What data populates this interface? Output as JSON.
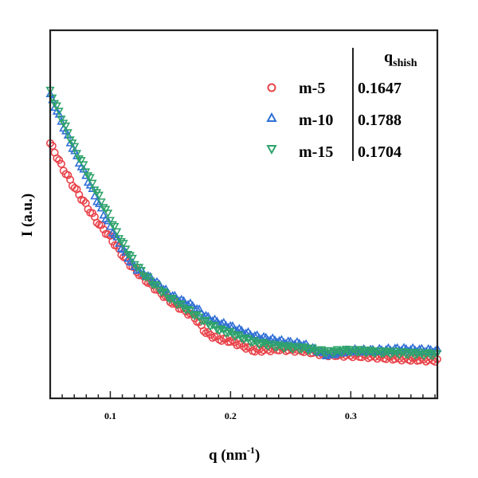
{
  "chart_data": {
    "type": "scatter",
    "title": "",
    "xlabel": "q (nm",
    "xlabel_sup": "-1",
    "xlabel_end": ")",
    "ylabel": "I (a.u.)",
    "xlim": [
      0.05,
      0.372
    ],
    "ylim": [
      0,
      100
    ],
    "xticks": [
      0.1,
      0.2,
      0.3
    ],
    "xtick_labels": [
      "0.1",
      "0.2",
      "0.3"
    ],
    "grid": false,
    "legend": {
      "placement": "top-right",
      "header": "q",
      "header_sub": "shish",
      "entries": [
        {
          "name": "m-5",
          "q_shish": "0.1647"
        },
        {
          "name": "m-10",
          "q_shish": "0.1788"
        },
        {
          "name": "m-15",
          "q_shish": "0.1704"
        }
      ]
    },
    "x": [
      0.05,
      0.06,
      0.07,
      0.08,
      0.09,
      0.1,
      0.11,
      0.12,
      0.13,
      0.14,
      0.15,
      0.16,
      0.17,
      0.18,
      0.19,
      0.2,
      0.22,
      0.24,
      0.26,
      0.28,
      0.3,
      0.32,
      0.34,
      0.37
    ],
    "series": [
      {
        "name": "m-5",
        "marker": "circle",
        "color": "#e8434a",
        "values": [
          69.3,
          62.8,
          57.4,
          52.4,
          47.6,
          43.7,
          39.0,
          35.1,
          32.0,
          29.2,
          26.4,
          24.2,
          22.1,
          17.7,
          16.2,
          15.6,
          13.0,
          13.4,
          13.0,
          11.9,
          11.7,
          11.3,
          10.8,
          10.4
        ]
      },
      {
        "name": "m-10",
        "marker": "triangle-up",
        "color": "#2f6fd6",
        "values": [
          82.3,
          74.7,
          67.1,
          60.2,
          53.0,
          46.5,
          40.7,
          35.7,
          33.5,
          31.0,
          28.1,
          26.4,
          24.9,
          22.1,
          20.6,
          19.5,
          16.9,
          15.6,
          14.7,
          11.9,
          13.0,
          13.0,
          13.4,
          13.0
        ]
      },
      {
        "name": "m-15",
        "marker": "triangle-down",
        "color": "#2fa36b",
        "values": [
          83.3,
          75.8,
          68.2,
          61.7,
          55.2,
          48.7,
          42.2,
          36.8,
          32.9,
          29.9,
          27.1,
          25.0,
          22.8,
          20.6,
          18.8,
          17.7,
          15.2,
          14.1,
          13.6,
          12.6,
          13.0,
          12.6,
          12.3,
          11.9
        ]
      }
    ]
  }
}
